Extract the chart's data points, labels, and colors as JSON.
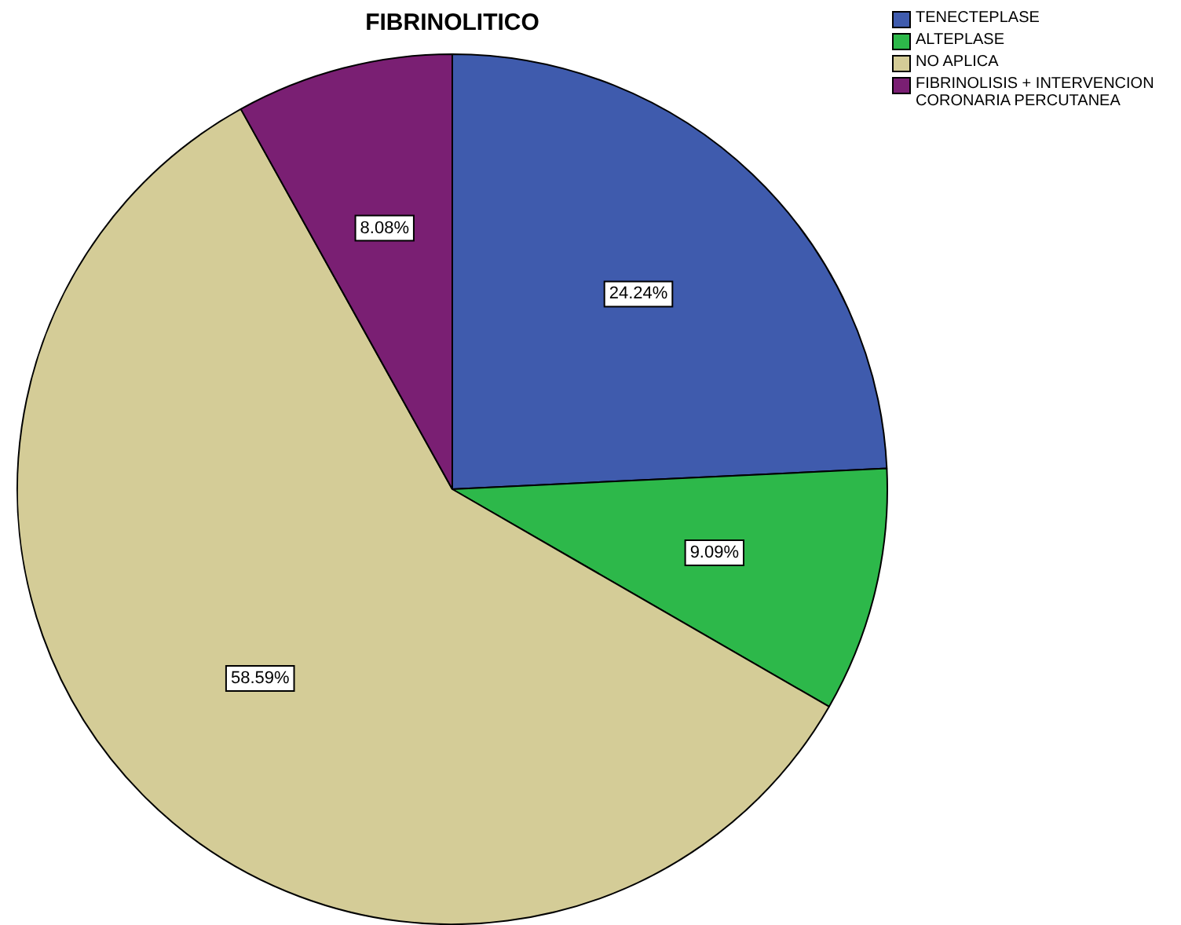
{
  "chart_data": {
    "type": "pie",
    "title": "FIBRINOLITICO",
    "categories": [
      "TENECTEPLASE",
      "ALTEPLASE",
      "NO APLICA",
      "FIBRINOLISIS + INTERVENCION CORONARIA PERCUTANEA"
    ],
    "values": [
      24.24,
      9.09,
      58.59,
      8.08
    ],
    "value_labels": [
      "24.24%",
      "9.09%",
      "58.59%",
      "8.08%"
    ],
    "colors": [
      "#3f5bad",
      "#2db84a",
      "#d4cc97",
      "#7a1f73"
    ],
    "legend": "top right"
  }
}
